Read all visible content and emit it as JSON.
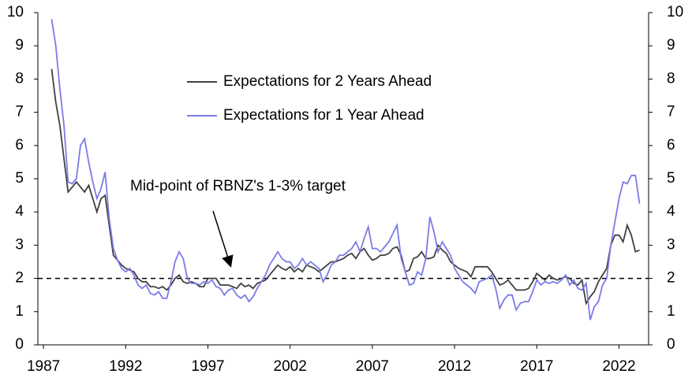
{
  "chart_data": {
    "type": "line",
    "annotation": "Mid-point of RBNZ's 1-3% target",
    "reference_line": {
      "value": 2
    },
    "x": [
      1987.5,
      1987.75,
      1988,
      1988.25,
      1988.5,
      1988.75,
      1989,
      1989.25,
      1989.5,
      1989.75,
      1990,
      1990.25,
      1990.5,
      1990.75,
      1991,
      1991.25,
      1991.5,
      1991.75,
      1992,
      1992.25,
      1992.5,
      1992.75,
      1993,
      1993.25,
      1993.5,
      1993.75,
      1994,
      1994.25,
      1994.5,
      1994.75,
      1995,
      1995.25,
      1995.5,
      1995.75,
      1996,
      1996.25,
      1996.5,
      1996.75,
      1997,
      1997.25,
      1997.5,
      1997.75,
      1998,
      1998.25,
      1998.5,
      1998.75,
      1999,
      1999.25,
      1999.5,
      1999.75,
      2000,
      2000.25,
      2000.5,
      2000.75,
      2001,
      2001.25,
      2001.5,
      2001.75,
      2002,
      2002.25,
      2002.5,
      2002.75,
      2003,
      2003.25,
      2003.5,
      2003.75,
      2004,
      2004.25,
      2004.5,
      2004.75,
      2005,
      2005.25,
      2005.5,
      2005.75,
      2006,
      2006.25,
      2006.5,
      2006.75,
      2007,
      2007.25,
      2007.5,
      2007.75,
      2008,
      2008.25,
      2008.5,
      2008.75,
      2009,
      2009.25,
      2009.5,
      2009.75,
      2010,
      2010.25,
      2010.5,
      2010.75,
      2011,
      2011.25,
      2011.5,
      2011.75,
      2012,
      2012.25,
      2012.5,
      2012.75,
      2013,
      2013.25,
      2013.5,
      2013.75,
      2014,
      2014.25,
      2014.5,
      2014.75,
      2015,
      2015.25,
      2015.5,
      2015.75,
      2016,
      2016.25,
      2016.5,
      2016.75,
      2017,
      2017.25,
      2017.5,
      2017.75,
      2018,
      2018.25,
      2018.5,
      2018.75,
      2019,
      2019.25,
      2019.5,
      2019.75,
      2020,
      2020.25,
      2020.5,
      2020.75,
      2021,
      2021.25,
      2021.5,
      2021.75,
      2022,
      2022.25,
      2022.5,
      2022.75,
      2023,
      2023.25
    ],
    "series": [
      {
        "name": "Expectations for 2 Years Ahead",
        "color": "#404040",
        "values": [
          8.3,
          7.3,
          6.6,
          5.6,
          4.6,
          4.75,
          4.9,
          4.75,
          4.6,
          4.8,
          4.4,
          4.0,
          4.4,
          4.5,
          3.6,
          2.7,
          2.55,
          2.4,
          2.3,
          2.25,
          2.2,
          2.0,
          1.9,
          1.9,
          1.75,
          1.75,
          1.7,
          1.75,
          1.65,
          1.8,
          2.0,
          2.1,
          1.9,
          1.85,
          1.9,
          1.85,
          1.75,
          1.75,
          2.0,
          2.0,
          2.0,
          1.8,
          1.8,
          1.8,
          1.75,
          1.7,
          1.85,
          1.75,
          1.8,
          1.7,
          1.85,
          1.9,
          1.95,
          2.1,
          2.25,
          2.4,
          2.3,
          2.25,
          2.35,
          2.2,
          2.3,
          2.2,
          2.4,
          2.35,
          2.3,
          2.2,
          2.3,
          2.4,
          2.5,
          2.5,
          2.55,
          2.6,
          2.7,
          2.75,
          2.6,
          2.8,
          2.9,
          2.7,
          2.55,
          2.6,
          2.7,
          2.7,
          2.75,
          2.9,
          2.95,
          2.7,
          2.2,
          2.25,
          2.6,
          2.65,
          2.8,
          2.6,
          2.6,
          2.65,
          3.0,
          2.85,
          2.75,
          2.5,
          2.4,
          2.3,
          2.25,
          2.2,
          2.05,
          2.35,
          2.35,
          2.35,
          2.35,
          2.2,
          2.0,
          1.8,
          1.85,
          1.95,
          1.8,
          1.65,
          1.65,
          1.65,
          1.7,
          1.9,
          2.15,
          2.05,
          1.95,
          2.1,
          2.0,
          1.95,
          2.0,
          2.05,
          2.0,
          1.85,
          1.8,
          1.95,
          1.25,
          1.45,
          1.6,
          1.9,
          2.1,
          2.3,
          3.0,
          3.3,
          3.3,
          3.1,
          3.6,
          3.3,
          2.8,
          2.85
        ]
      },
      {
        "name": "Expectations for 1 Year Ahead",
        "color": "#7b7be8",
        "values": [
          9.8,
          9.0,
          7.7,
          6.6,
          4.9,
          4.85,
          5.0,
          6.0,
          6.2,
          5.5,
          4.9,
          4.4,
          4.7,
          5.2,
          3.8,
          2.9,
          2.55,
          2.3,
          2.2,
          2.3,
          2.1,
          1.8,
          1.7,
          1.8,
          1.55,
          1.5,
          1.6,
          1.4,
          1.4,
          1.9,
          2.5,
          2.8,
          2.6,
          2.0,
          1.85,
          1.85,
          1.8,
          1.9,
          1.85,
          1.95,
          1.75,
          1.7,
          1.5,
          1.65,
          1.7,
          1.5,
          1.4,
          1.5,
          1.3,
          1.45,
          1.7,
          1.9,
          2.1,
          2.4,
          2.6,
          2.8,
          2.6,
          2.5,
          2.5,
          2.3,
          2.4,
          2.6,
          2.4,
          2.5,
          2.4,
          2.3,
          1.9,
          2.1,
          2.4,
          2.5,
          2.7,
          2.7,
          2.8,
          2.9,
          3.1,
          2.8,
          3.2,
          3.55,
          2.9,
          2.9,
          2.8,
          2.95,
          3.1,
          3.35,
          3.6,
          2.6,
          2.2,
          1.8,
          1.85,
          2.2,
          2.1,
          2.6,
          3.85,
          3.4,
          2.8,
          3.1,
          2.9,
          2.7,
          2.3,
          2.1,
          1.9,
          1.8,
          1.7,
          1.55,
          1.9,
          1.95,
          2.0,
          2.1,
          1.7,
          1.1,
          1.35,
          1.5,
          1.5,
          1.05,
          1.25,
          1.3,
          1.3,
          1.6,
          1.95,
          1.8,
          1.9,
          1.85,
          1.9,
          1.85,
          1.95,
          2.1,
          1.8,
          1.95,
          1.7,
          1.65,
          1.85,
          0.75,
          1.15,
          1.3,
          1.8,
          2.0,
          3.0,
          3.7,
          4.4,
          4.9,
          4.85,
          5.1,
          5.1,
          4.25
        ]
      }
    ],
    "xlim": [
      1986.66,
      2023.8
    ],
    "xticks": [
      1987,
      1992,
      1997,
      2002,
      2007,
      2012,
      2017,
      2022
    ],
    "ylim": [
      0,
      10
    ],
    "yticks": [
      0,
      1,
      2,
      3,
      4,
      5,
      6,
      7,
      8,
      9,
      10
    ],
    "y2lim": [
      0,
      10
    ],
    "y2ticks": [
      0,
      1,
      2,
      3,
      4,
      5,
      6,
      7,
      8,
      9,
      10
    ]
  }
}
